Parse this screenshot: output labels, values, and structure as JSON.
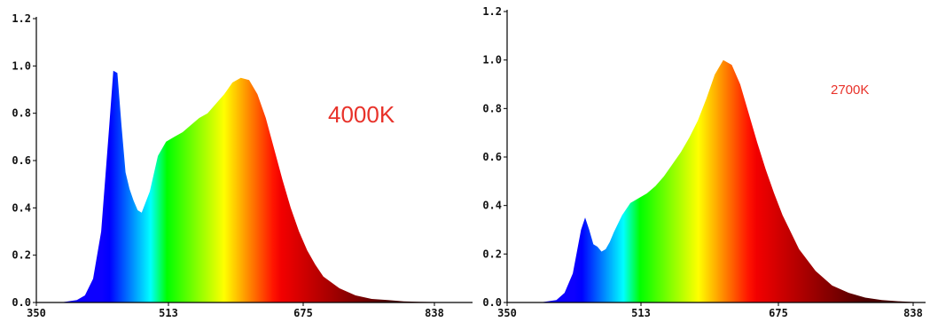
{
  "chart_data": [
    {
      "type": "area",
      "annotation": "4000K",
      "annotation_color": "#e8322a",
      "x_ticks": [
        "350",
        "513",
        "675",
        "838"
      ],
      "y_ticks": [
        "0.0",
        "0.2",
        "0.4",
        "0.6",
        "0.8",
        "1.0",
        "1.2"
      ],
      "xlim": [
        350,
        870
      ],
      "ylim": [
        0,
        1.2
      ],
      "legend": "none",
      "grid": false,
      "fill": "visible-spectrum color gradient by wavelength",
      "series": [
        {
          "x": [
            350,
            380,
            400,
            410,
            420,
            430,
            440,
            445,
            450,
            455,
            460,
            465,
            470,
            475,
            480,
            490,
            500,
            510,
            520,
            530,
            540,
            550,
            560,
            570,
            580,
            590,
            600,
            610,
            620,
            630,
            640,
            650,
            660,
            670,
            680,
            690,
            700,
            720,
            740,
            760,
            780,
            800,
            820,
            840,
            860,
            870
          ],
          "y": [
            0.0,
            0.0,
            0.01,
            0.03,
            0.1,
            0.3,
            0.75,
            0.98,
            0.97,
            0.75,
            0.55,
            0.48,
            0.43,
            0.39,
            0.38,
            0.47,
            0.62,
            0.68,
            0.7,
            0.72,
            0.75,
            0.78,
            0.8,
            0.84,
            0.88,
            0.93,
            0.95,
            0.94,
            0.88,
            0.78,
            0.65,
            0.52,
            0.4,
            0.3,
            0.22,
            0.16,
            0.11,
            0.06,
            0.03,
            0.015,
            0.01,
            0.005,
            0.003,
            0.002,
            0.001,
            0.0
          ]
        }
      ]
    },
    {
      "type": "area",
      "annotation": "2700K",
      "annotation_color": "#e8322a",
      "x_ticks": [
        "350",
        "513",
        "675",
        "838"
      ],
      "y_ticks": [
        "0.0",
        "0.2",
        "0.4",
        "0.6",
        "0.8",
        "1.0",
        "1.2"
      ],
      "xlim": [
        350,
        850
      ],
      "ylim": [
        0,
        1.2
      ],
      "legend": "none",
      "grid": false,
      "fill": "visible-spectrum color gradient by wavelength",
      "series": [
        {
          "x": [
            350,
            390,
            410,
            420,
            430,
            440,
            445,
            450,
            455,
            460,
            465,
            470,
            475,
            480,
            490,
            500,
            510,
            520,
            530,
            540,
            550,
            560,
            570,
            580,
            590,
            600,
            610,
            620,
            630,
            640,
            650,
            660,
            670,
            680,
            690,
            700,
            720,
            740,
            760,
            780,
            800,
            820,
            840,
            850
          ],
          "y": [
            0.0,
            0.0,
            0.01,
            0.04,
            0.12,
            0.3,
            0.35,
            0.3,
            0.24,
            0.23,
            0.21,
            0.22,
            0.25,
            0.29,
            0.36,
            0.41,
            0.43,
            0.45,
            0.48,
            0.52,
            0.57,
            0.62,
            0.68,
            0.75,
            0.84,
            0.94,
            1.0,
            0.98,
            0.9,
            0.78,
            0.66,
            0.55,
            0.45,
            0.36,
            0.29,
            0.22,
            0.13,
            0.07,
            0.04,
            0.02,
            0.01,
            0.005,
            0.002,
            0.0
          ]
        }
      ]
    }
  ]
}
